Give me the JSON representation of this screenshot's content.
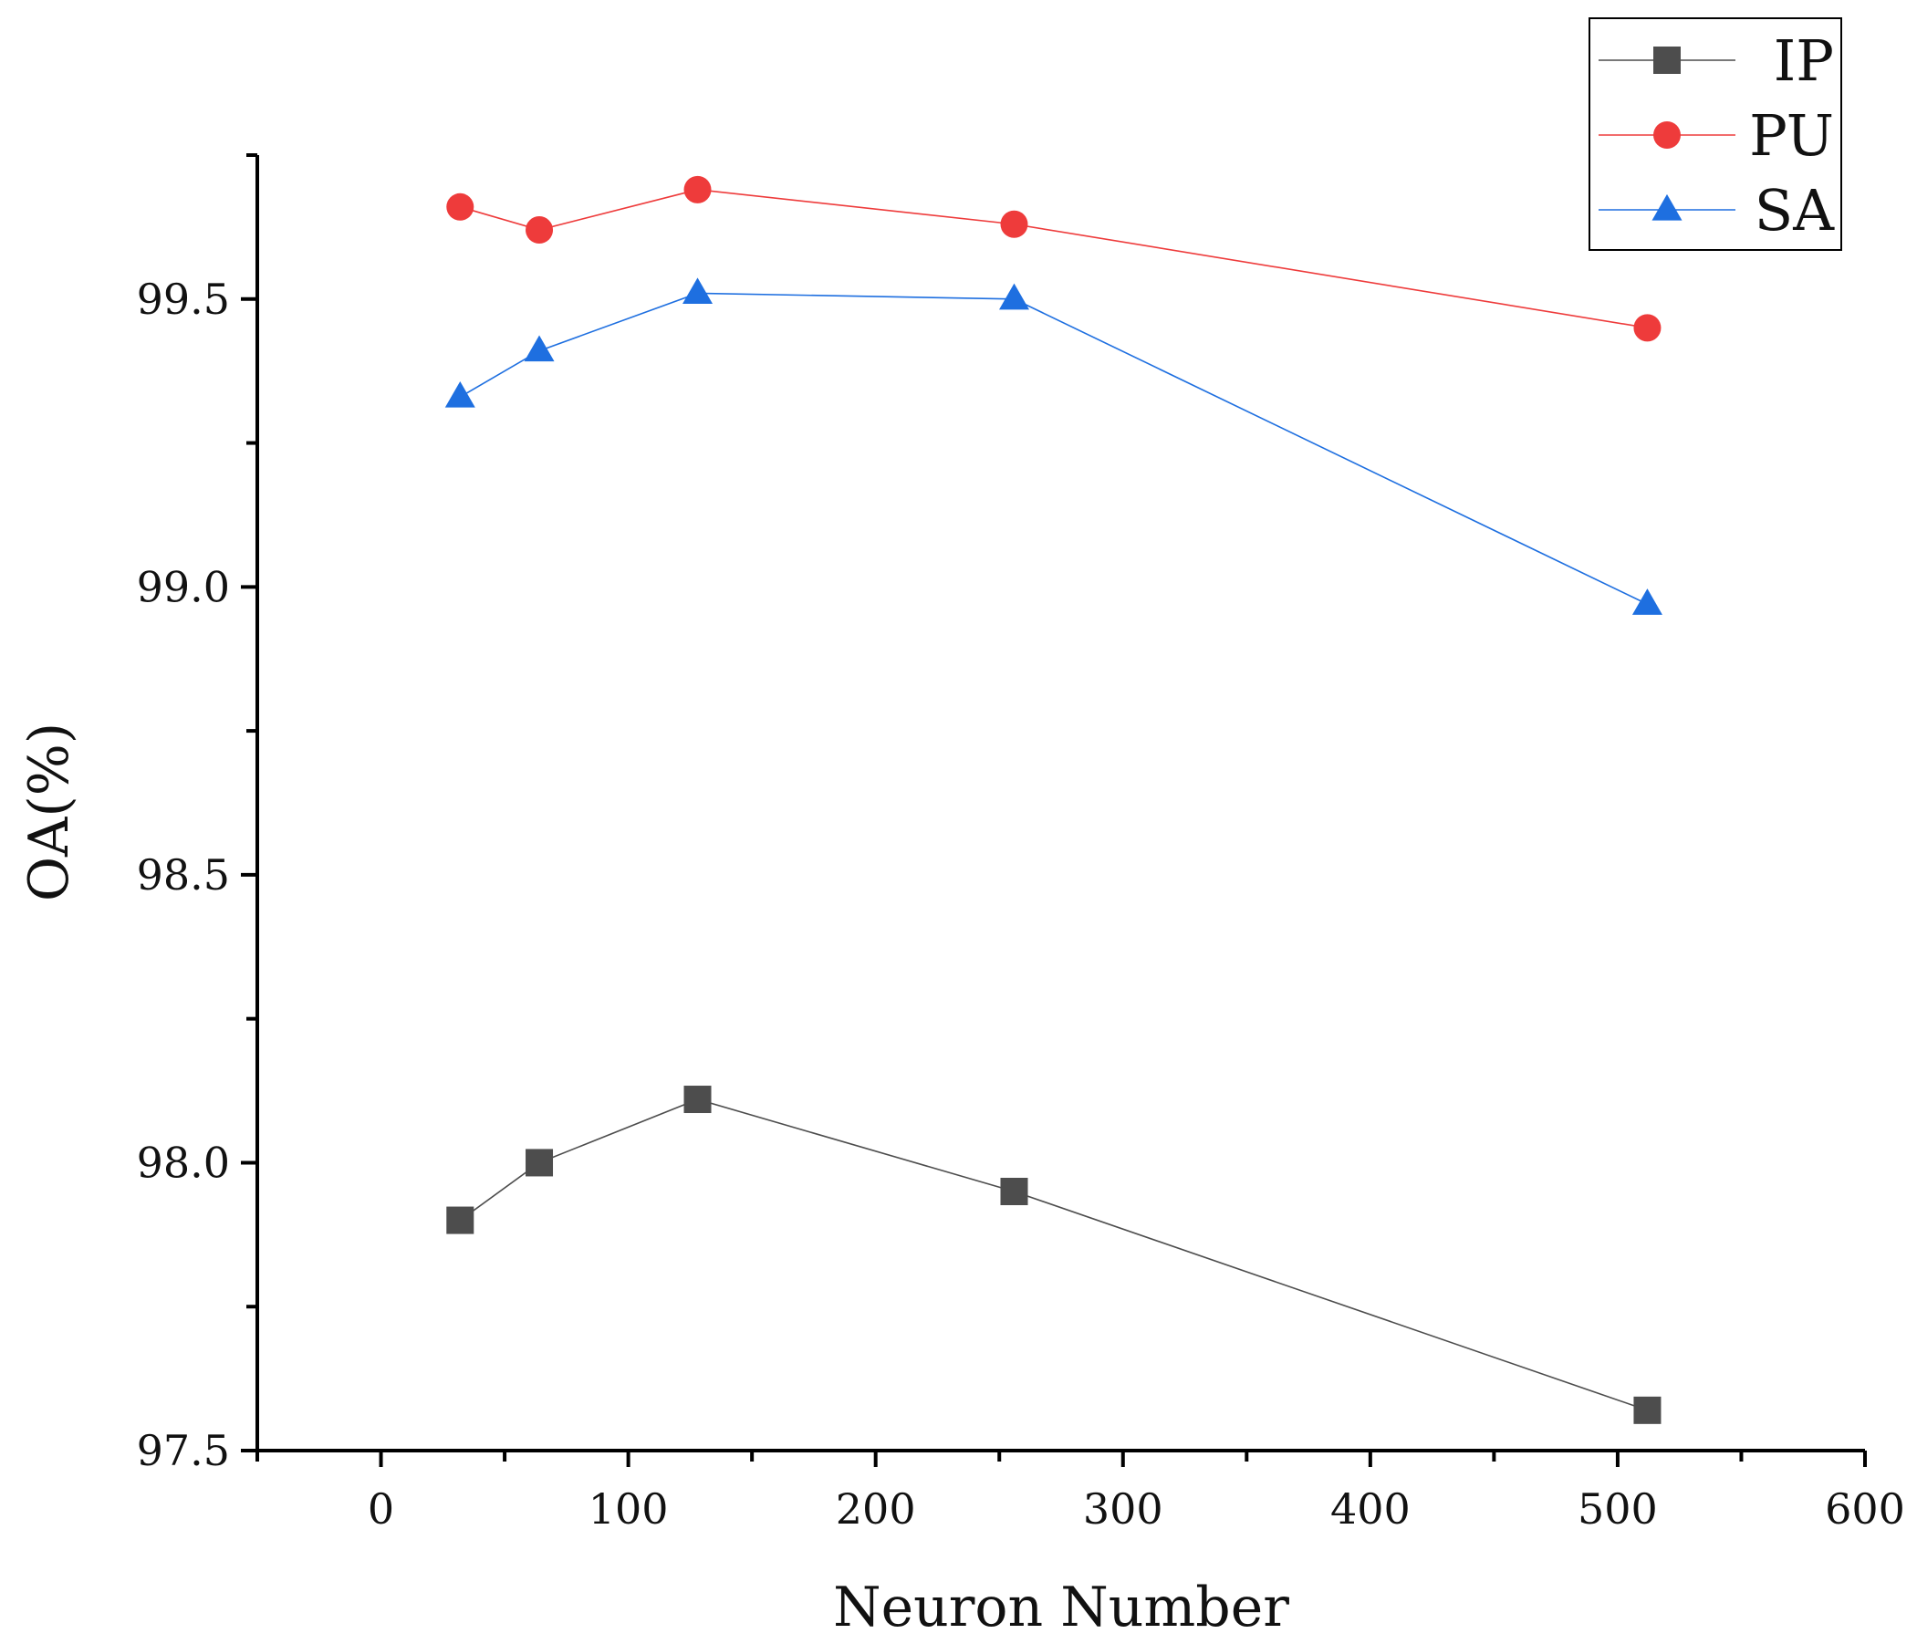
{
  "chart_data": {
    "type": "line",
    "title": "",
    "xlabel": "Neuron Number",
    "ylabel": "OA(%)",
    "xlim": [
      -50,
      600
    ],
    "ylim": [
      97.5,
      99.75
    ],
    "x_ticks": [
      0,
      100,
      200,
      300,
      400,
      500,
      600
    ],
    "x_tick_labels": [
      "0",
      "100",
      "200",
      "300",
      "400",
      "500",
      "600"
    ],
    "y_ticks": [
      97.5,
      98.0,
      98.5,
      99.0,
      99.5
    ],
    "y_tick_labels": [
      "97.5",
      "98.0",
      "98.5",
      "99.0",
      "99.5"
    ],
    "grid": false,
    "legend_position": "top-right",
    "x": [
      32,
      64,
      128,
      256,
      512
    ],
    "series": [
      {
        "name": "IP",
        "marker": "square",
        "color": "#4d4d4d",
        "values": [
          97.9,
          98.0,
          98.11,
          97.95,
          97.57
        ]
      },
      {
        "name": "PU",
        "marker": "circle",
        "color": "#ee3b3b",
        "values": [
          99.66,
          99.62,
          99.69,
          99.63,
          99.45
        ]
      },
      {
        "name": "SA",
        "marker": "triangle",
        "color": "#1e6fe0",
        "values": [
          99.33,
          99.41,
          99.51,
          99.5,
          98.97
        ]
      }
    ]
  }
}
